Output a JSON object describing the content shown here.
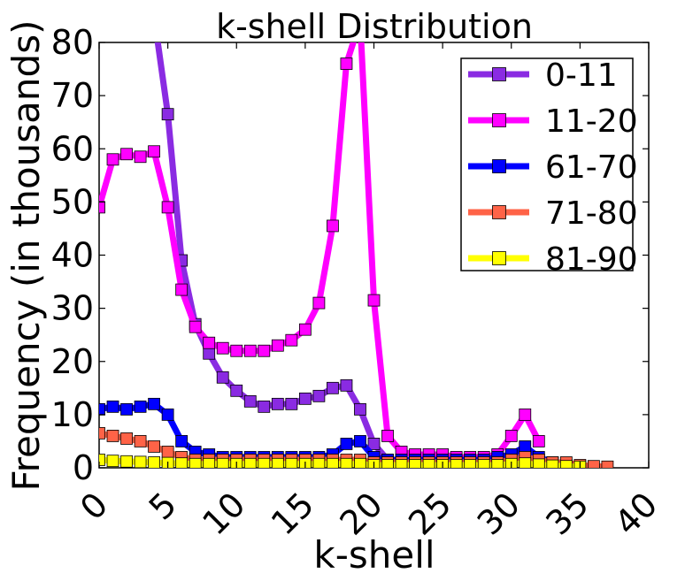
{
  "chart_data": {
    "type": "line",
    "title": "k-shell Distribution",
    "xlabel": "k-shell",
    "ylabel": "Frequency (in thousands)",
    "xlim": [
      0,
      40
    ],
    "ylim": [
      0,
      80
    ],
    "xticks": [
      "0",
      "5",
      "10",
      "15",
      "20",
      "25",
      "30",
      "35",
      "40"
    ],
    "yticks": [
      "0",
      "10",
      "20",
      "30",
      "40",
      "50",
      "60",
      "70",
      "80"
    ],
    "grid": false,
    "legend_position": "top-right",
    "series": [
      {
        "name": "0-11",
        "color": "#8a2be2",
        "x": [
          4,
          5,
          6,
          7,
          8,
          9,
          10,
          11,
          12,
          13,
          14,
          15,
          16,
          17,
          18,
          19,
          20,
          21,
          22,
          23,
          24,
          25,
          26,
          27,
          28,
          29,
          30,
          31,
          32,
          33,
          34,
          35
        ],
        "y": [
          85,
          66.5,
          39,
          27,
          21.5,
          17,
          14.5,
          12.5,
          11.5,
          12,
          12,
          13,
          13.5,
          15,
          15.5,
          11,
          4.5,
          1.5,
          1.5,
          1.5,
          1.5,
          1.5,
          1.5,
          1.5,
          1.5,
          1.5,
          2,
          2,
          1.5,
          1,
          0.5,
          0.3
        ]
      },
      {
        "name": "11-20",
        "color": "#ff00ff",
        "x": [
          0,
          1,
          2,
          3,
          4,
          5,
          6,
          7,
          8,
          9,
          10,
          11,
          12,
          13,
          14,
          15,
          16,
          17,
          18,
          19,
          20,
          21,
          22,
          23,
          24,
          25,
          26,
          27,
          28,
          29,
          30,
          31,
          32
        ],
        "y": [
          49,
          58,
          59,
          58.5,
          59.5,
          49,
          33.5,
          26.5,
          23.5,
          22.5,
          22,
          22,
          22,
          23,
          24,
          26,
          31,
          45.5,
          76,
          84,
          31.5,
          6,
          3,
          2.5,
          2.5,
          2.5,
          2,
          2,
          2,
          2.5,
          6,
          10,
          5
        ]
      },
      {
        "name": "61-70",
        "color": "#0000ff",
        "x": [
          0,
          1,
          2,
          3,
          4,
          5,
          6,
          7,
          8,
          9,
          10,
          11,
          12,
          13,
          14,
          15,
          16,
          17,
          18,
          19,
          20,
          21,
          22,
          23,
          24,
          25,
          26,
          27,
          28,
          29,
          30,
          31,
          32,
          33
        ],
        "y": [
          11,
          11.5,
          11,
          11.5,
          12,
          10,
          5,
          3,
          2.5,
          2,
          2,
          2,
          2,
          2,
          2,
          2,
          2,
          2.5,
          4.5,
          5,
          2,
          1.5,
          1.5,
          1.5,
          1.5,
          1.5,
          1.5,
          1.5,
          1.5,
          2,
          2.5,
          4,
          2,
          1
        ]
      },
      {
        "name": "71-80",
        "color": "#ff6347",
        "x": [
          0,
          1,
          2,
          3,
          4,
          5,
          6,
          7,
          8,
          9,
          10,
          11,
          12,
          13,
          14,
          15,
          16,
          17,
          18,
          19,
          20,
          21,
          22,
          23,
          24,
          25,
          26,
          27,
          28,
          29,
          30,
          31,
          32,
          33,
          34,
          35,
          36,
          37
        ],
        "y": [
          6.5,
          6,
          5.5,
          5,
          4,
          3,
          2,
          1.5,
          1.5,
          1.5,
          1.5,
          1.5,
          1.5,
          1.5,
          1.5,
          1.5,
          1.5,
          1.5,
          1.5,
          1.5,
          1,
          1,
          1,
          1,
          1,
          1,
          1,
          1,
          1,
          1,
          1.5,
          2,
          1.5,
          1,
          1,
          0.5,
          0.3,
          0.2
        ]
      },
      {
        "name": "81-90",
        "color": "#ffff00",
        "x": [
          0,
          1,
          2,
          3,
          4,
          5,
          6,
          7,
          8,
          9,
          10,
          11,
          12,
          13,
          14,
          15,
          16,
          17,
          18,
          19,
          20,
          21,
          22,
          23,
          24,
          25,
          26,
          27,
          28,
          29,
          30,
          31,
          32,
          33,
          34,
          35
        ],
        "y": [
          1.5,
          1.3,
          1.2,
          1.1,
          1,
          0.9,
          0.8,
          0.7,
          0.7,
          0.7,
          0.7,
          0.7,
          0.7,
          0.7,
          0.7,
          0.7,
          0.7,
          0.7,
          0.7,
          0.7,
          0.5,
          0.5,
          0.5,
          0.5,
          0.5,
          0.5,
          0.5,
          0.5,
          0.5,
          0.5,
          0.7,
          0.8,
          0.6,
          0.4,
          0.3,
          0.2
        ]
      }
    ]
  }
}
